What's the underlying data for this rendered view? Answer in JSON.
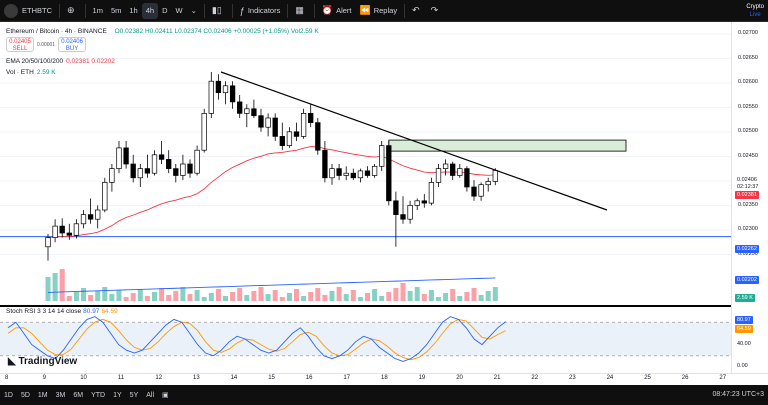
{
  "topbar": {
    "symbol": "ETHBTC",
    "timeframes": [
      "1m",
      "5m",
      "1h",
      "4h",
      "D",
      "W"
    ],
    "active_tf": "4h",
    "indicators_label": "Indicators",
    "alert_label": "Alert",
    "replay_label": "Replay",
    "crypto_label": "Crypto",
    "live_label": "Live"
  },
  "legend": {
    "title": "Ethereum / Bitcoin · 4h · BINANCE",
    "ohlc": "O0.02382 H0.02411 L0.02374 C0.02406 +0.00025 (+1.05%) Vol2.59 K",
    "sell_price": "0.02405",
    "sell_label": "SELL",
    "spread": "0.00001",
    "buy_price": "0.02406",
    "buy_label": "BUY",
    "ema_label": "EMA 20/50/100/200",
    "ema_values": "0.02381  0.02202",
    "vol_label": "Vol · ETH",
    "vol_value": "2.59 K",
    "stoch_label": "Stoch RSI 3 3 14 14 close",
    "stoch_k": "80.97",
    "stoch_d": "64.59",
    "watermark": "TradingView"
  },
  "price_scale": {
    "labels": [
      "0.02700",
      "0.02650",
      "0.02600",
      "0.02550",
      "0.02500",
      "0.02450",
      "0.02400",
      "0.02350",
      "0.02300",
      "0.02250"
    ],
    "current_price": "0.02406",
    "countdown": "02:12:37",
    "ema_tag": "0.02381",
    "hline_tag": "0.02262",
    "ema200_tag": "0.02202",
    "vol_tag": "2.59 K",
    "stoch_labels": [
      "80.97",
      "64.59",
      "40.00",
      "0.00"
    ]
  },
  "time_labels": [
    "8",
    "9",
    "10",
    "11",
    "12",
    "13",
    "14",
    "15",
    "16",
    "17",
    "18",
    "19",
    "20",
    "21",
    "22",
    "23",
    "24",
    "25",
    "26",
    "27"
  ],
  "bottombar": {
    "ranges": [
      "1D",
      "5D",
      "1M",
      "3M",
      "6M",
      "YTD",
      "1Y",
      "5Y",
      "All"
    ],
    "clock": "08:47:23 UTC+3"
  },
  "colors": {
    "up": "#ffffff",
    "down": "#000000",
    "ema_short": "#f23645",
    "ema_long": "#2962ff",
    "hline": "#2962ff",
    "trend": "#000000",
    "zone_fill": "#d8ecd8",
    "stoch_k": "#2962ff",
    "stoch_d": "#ff9800",
    "vol_up": "#22ab94",
    "vol_down": "#f7525f"
  },
  "chart_data": {
    "type": "candlestick",
    "pair": "ETHBTC",
    "interval": "4h",
    "ylim": [
      0.0222,
      0.0272
    ],
    "candles": [
      {
        "o": 0.0224,
        "h": 0.02268,
        "l": 0.0221,
        "c": 0.0226
      },
      {
        "o": 0.0226,
        "h": 0.023,
        "l": 0.0225,
        "c": 0.02285
      },
      {
        "o": 0.02285,
        "h": 0.02302,
        "l": 0.0226,
        "c": 0.0227
      },
      {
        "o": 0.0227,
        "h": 0.0229,
        "l": 0.02255,
        "c": 0.02265
      },
      {
        "o": 0.02265,
        "h": 0.023,
        "l": 0.02258,
        "c": 0.0229
      },
      {
        "o": 0.0229,
        "h": 0.0232,
        "l": 0.0228,
        "c": 0.0231
      },
      {
        "o": 0.0231,
        "h": 0.02345,
        "l": 0.0229,
        "c": 0.023
      },
      {
        "o": 0.023,
        "h": 0.0233,
        "l": 0.0228,
        "c": 0.0232
      },
      {
        "o": 0.0232,
        "h": 0.0239,
        "l": 0.02315,
        "c": 0.0238
      },
      {
        "o": 0.0238,
        "h": 0.0242,
        "l": 0.0236,
        "c": 0.0241
      },
      {
        "o": 0.0241,
        "h": 0.0247,
        "l": 0.024,
        "c": 0.02455
      },
      {
        "o": 0.02455,
        "h": 0.0247,
        "l": 0.0241,
        "c": 0.0242
      },
      {
        "o": 0.0242,
        "h": 0.0244,
        "l": 0.0238,
        "c": 0.0239
      },
      {
        "o": 0.0239,
        "h": 0.0242,
        "l": 0.0237,
        "c": 0.0241
      },
      {
        "o": 0.0241,
        "h": 0.0244,
        "l": 0.0239,
        "c": 0.024
      },
      {
        "o": 0.024,
        "h": 0.0245,
        "l": 0.02395,
        "c": 0.0244
      },
      {
        "o": 0.0244,
        "h": 0.0247,
        "l": 0.0242,
        "c": 0.0243
      },
      {
        "o": 0.0243,
        "h": 0.0245,
        "l": 0.024,
        "c": 0.0241
      },
      {
        "o": 0.0241,
        "h": 0.0242,
        "l": 0.0238,
        "c": 0.02395
      },
      {
        "o": 0.02395,
        "h": 0.0244,
        "l": 0.02385,
        "c": 0.0242
      },
      {
        "o": 0.0242,
        "h": 0.0243,
        "l": 0.0239,
        "c": 0.024
      },
      {
        "o": 0.024,
        "h": 0.0246,
        "l": 0.02395,
        "c": 0.0245
      },
      {
        "o": 0.0245,
        "h": 0.0254,
        "l": 0.02445,
        "c": 0.0253
      },
      {
        "o": 0.0253,
        "h": 0.0262,
        "l": 0.0252,
        "c": 0.026
      },
      {
        "o": 0.026,
        "h": 0.02615,
        "l": 0.0256,
        "c": 0.02575
      },
      {
        "o": 0.02575,
        "h": 0.026,
        "l": 0.0255,
        "c": 0.0259
      },
      {
        "o": 0.0259,
        "h": 0.026,
        "l": 0.0254,
        "c": 0.02555
      },
      {
        "o": 0.02555,
        "h": 0.0257,
        "l": 0.0252,
        "c": 0.0253
      },
      {
        "o": 0.0253,
        "h": 0.0255,
        "l": 0.025,
        "c": 0.0254
      },
      {
        "o": 0.0254,
        "h": 0.0256,
        "l": 0.0252,
        "c": 0.02525
      },
      {
        "o": 0.02525,
        "h": 0.0254,
        "l": 0.0249,
        "c": 0.025
      },
      {
        "o": 0.025,
        "h": 0.0253,
        "l": 0.0248,
        "c": 0.0252
      },
      {
        "o": 0.0252,
        "h": 0.0253,
        "l": 0.0247,
        "c": 0.0248
      },
      {
        "o": 0.0248,
        "h": 0.0251,
        "l": 0.0245,
        "c": 0.0246
      },
      {
        "o": 0.0246,
        "h": 0.025,
        "l": 0.02455,
        "c": 0.0249
      },
      {
        "o": 0.0249,
        "h": 0.0251,
        "l": 0.0247,
        "c": 0.0248
      },
      {
        "o": 0.0248,
        "h": 0.0254,
        "l": 0.02475,
        "c": 0.0253
      },
      {
        "o": 0.0253,
        "h": 0.0255,
        "l": 0.025,
        "c": 0.0251
      },
      {
        "o": 0.0251,
        "h": 0.0252,
        "l": 0.0244,
        "c": 0.0245
      },
      {
        "o": 0.0245,
        "h": 0.0247,
        "l": 0.0238,
        "c": 0.0239
      },
      {
        "o": 0.0239,
        "h": 0.0242,
        "l": 0.02375,
        "c": 0.0241
      },
      {
        "o": 0.0241,
        "h": 0.0242,
        "l": 0.02385,
        "c": 0.02395
      },
      {
        "o": 0.02395,
        "h": 0.02415,
        "l": 0.02385,
        "c": 0.024
      },
      {
        "o": 0.024,
        "h": 0.0241,
        "l": 0.02385,
        "c": 0.0239
      },
      {
        "o": 0.0239,
        "h": 0.0241,
        "l": 0.0238,
        "c": 0.02405
      },
      {
        "o": 0.02405,
        "h": 0.02415,
        "l": 0.0239,
        "c": 0.02395
      },
      {
        "o": 0.02395,
        "h": 0.0242,
        "l": 0.0239,
        "c": 0.02415
      },
      {
        "o": 0.02415,
        "h": 0.0247,
        "l": 0.02405,
        "c": 0.0246
      },
      {
        "o": 0.0246,
        "h": 0.0247,
        "l": 0.0233,
        "c": 0.0234
      },
      {
        "o": 0.0234,
        "h": 0.0236,
        "l": 0.0224,
        "c": 0.0231
      },
      {
        "o": 0.0231,
        "h": 0.0235,
        "l": 0.0229,
        "c": 0.023
      },
      {
        "o": 0.023,
        "h": 0.0234,
        "l": 0.0229,
        "c": 0.0233
      },
      {
        "o": 0.0233,
        "h": 0.02345,
        "l": 0.0232,
        "c": 0.0234
      },
      {
        "o": 0.0234,
        "h": 0.02355,
        "l": 0.02325,
        "c": 0.02335
      },
      {
        "o": 0.02335,
        "h": 0.0239,
        "l": 0.0233,
        "c": 0.0238
      },
      {
        "o": 0.0238,
        "h": 0.0242,
        "l": 0.0237,
        "c": 0.0241
      },
      {
        "o": 0.0241,
        "h": 0.0243,
        "l": 0.02395,
        "c": 0.0242
      },
      {
        "o": 0.0242,
        "h": 0.02425,
        "l": 0.02385,
        "c": 0.02395
      },
      {
        "o": 0.02395,
        "h": 0.0242,
        "l": 0.0239,
        "c": 0.0241
      },
      {
        "o": 0.0241,
        "h": 0.02415,
        "l": 0.0236,
        "c": 0.0237
      },
      {
        "o": 0.0237,
        "h": 0.02385,
        "l": 0.0234,
        "c": 0.0235
      },
      {
        "o": 0.0235,
        "h": 0.0238,
        "l": 0.0234,
        "c": 0.02375
      },
      {
        "o": 0.02375,
        "h": 0.0239,
        "l": 0.0236,
        "c": 0.02382
      },
      {
        "o": 0.02382,
        "h": 0.02411,
        "l": 0.02374,
        "c": 0.02406
      }
    ],
    "trendline": [
      [
        0.0262,
        0
      ],
      [
        0.0232,
        1
      ]
    ],
    "resistance_zone": [
      0.02448,
      0.02472
    ],
    "hline": 0.02262,
    "stoch_k": [
      70,
      80,
      60,
      40,
      30,
      20,
      15,
      30,
      50,
      70,
      85,
      90,
      80,
      60,
      40,
      30,
      25,
      30,
      45,
      60,
      75,
      85,
      80,
      60,
      40,
      25,
      20,
      30,
      45,
      55,
      50,
      40,
      30,
      25,
      30,
      45,
      60,
      70,
      55,
      35,
      20,
      15,
      20,
      30,
      45,
      55,
      50,
      35,
      25,
      15,
      10,
      15,
      25,
      40,
      60,
      80,
      90,
      85,
      70,
      50,
      40,
      55,
      70,
      81
    ],
    "stoch_d": [
      60,
      70,
      70,
      60,
      45,
      30,
      22,
      22,
      32,
      50,
      68,
      80,
      85,
      80,
      65,
      48,
      35,
      30,
      33,
      45,
      60,
      72,
      80,
      78,
      65,
      45,
      30,
      26,
      32,
      43,
      50,
      48,
      40,
      32,
      28,
      33,
      45,
      58,
      62,
      55,
      38,
      25,
      20,
      22,
      32,
      43,
      50,
      47,
      37,
      25,
      17,
      13,
      17,
      27,
      42,
      60,
      77,
      85,
      82,
      68,
      53,
      50,
      58,
      65
    ]
  }
}
